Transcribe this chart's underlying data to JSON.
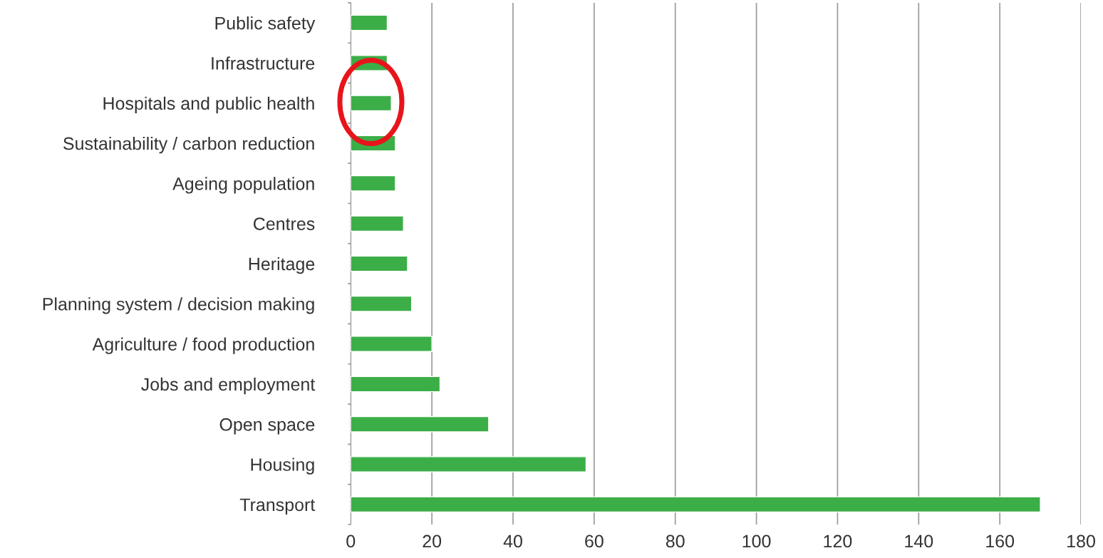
{
  "chart_data": {
    "type": "bar",
    "orientation": "horizontal",
    "categories": [
      "Public safety",
      "Infrastructure",
      "Hospitals and public health",
      "Sustainability / carbon reduction",
      "Ageing population",
      "Centres",
      "Heritage",
      "Planning system / decision making",
      "Agriculture / food production",
      "Jobs and employment",
      "Open space",
      "Housing",
      "Transport"
    ],
    "values": [
      9,
      9,
      10,
      11,
      11,
      13,
      14,
      15,
      20,
      22,
      34,
      58,
      170
    ],
    "color": "#3cae48",
    "xlim": [
      0,
      180
    ],
    "xticks": [
      0,
      20,
      40,
      60,
      80,
      100,
      120,
      140,
      160,
      180
    ],
    "grid": "x"
  }
}
